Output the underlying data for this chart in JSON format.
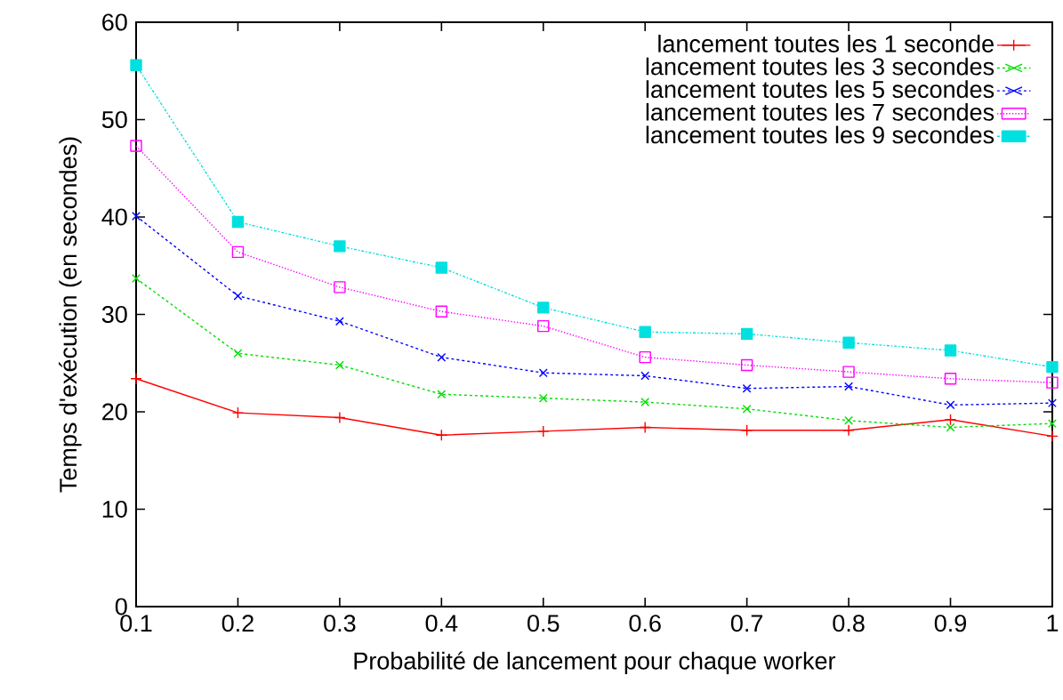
{
  "chart_data": {
    "type": "line",
    "xlabel": "Probabilité de lancement pour chaque worker",
    "ylabel": "Temps d'exécution (en secondes)",
    "x": [
      0.1,
      0.2,
      0.3,
      0.4,
      0.5,
      0.6,
      0.7,
      0.8,
      0.9,
      1
    ],
    "series": [
      {
        "name": "lancement toutes les 1 seconde",
        "color": "#ff0000",
        "marker": "plus",
        "line_style": "solid",
        "values": [
          23.4,
          19.9,
          19.4,
          17.6,
          18.0,
          18.4,
          18.1,
          18.1,
          19.2,
          17.5
        ]
      },
      {
        "name": "lancement toutes les 3 secondes",
        "color": "#00dd00",
        "marker": "cross",
        "line_style": "dashed",
        "values": [
          33.7,
          26.0,
          24.8,
          21.8,
          21.4,
          21.0,
          20.3,
          19.1,
          18.4,
          18.8
        ]
      },
      {
        "name": "lancement toutes les 5 secondes",
        "color": "#0000ff",
        "marker": "cross",
        "line_style": "dashed",
        "values": [
          40.1,
          31.9,
          29.3,
          25.6,
          24.0,
          23.7,
          22.4,
          22.6,
          20.7,
          20.9
        ]
      },
      {
        "name": "lancement toutes les 7 secondes",
        "color": "#ff00ff",
        "marker": "square",
        "line_style": "dotted",
        "values": [
          47.3,
          36.4,
          32.8,
          30.3,
          28.8,
          25.6,
          24.8,
          24.1,
          23.4,
          23.0
        ]
      },
      {
        "name": "lancement toutes les 9 secondes",
        "color": "#00e0e0",
        "marker": "square_filled",
        "line_style": "dashdot",
        "values": [
          55.6,
          39.5,
          37.0,
          34.8,
          30.7,
          28.2,
          28.0,
          27.1,
          26.3,
          24.6
        ]
      }
    ],
    "xlim": [
      0.1,
      1
    ],
    "ylim": [
      0,
      60
    ],
    "xticks": [
      0.1,
      0.2,
      0.3,
      0.4,
      0.5,
      0.6,
      0.7,
      0.8,
      0.9,
      1
    ],
    "yticks": [
      0,
      10,
      20,
      30,
      40,
      50,
      60
    ],
    "legend": "top right"
  }
}
